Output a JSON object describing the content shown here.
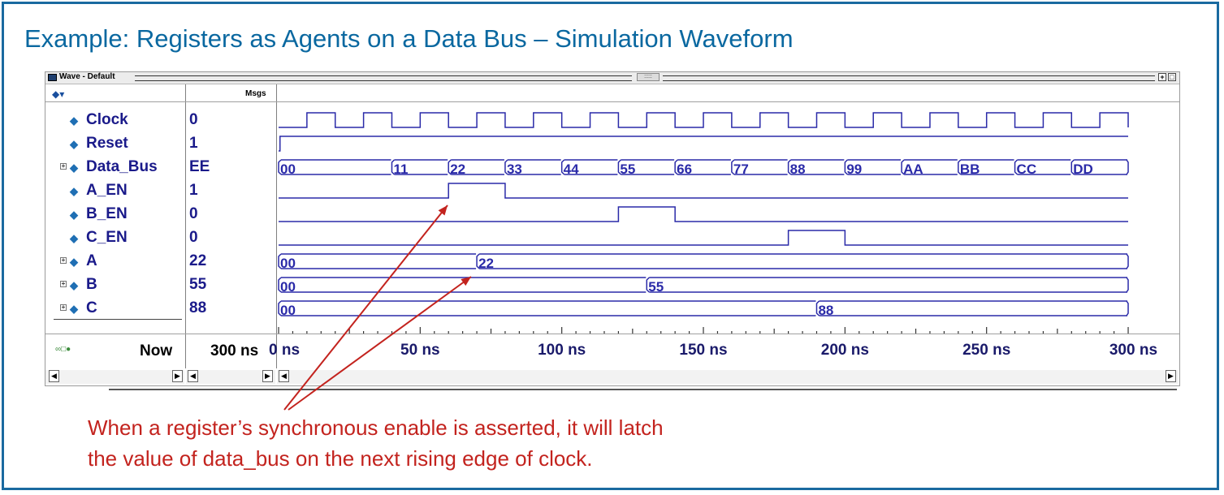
{
  "slide": {
    "title": "Example: Registers as Agents on a Data Bus – Simulation Waveform",
    "note_line1": "When a register’s synchronous enable is asserted, it will latch",
    "note_line2": "the value of data_bus on the next rising edge of clock."
  },
  "window": {
    "title": "Wave - Default",
    "msgs_header": "Msgs",
    "now_label": "Now",
    "now_value": "300 ns"
  },
  "signals": [
    {
      "name": "Clock",
      "value": "0",
      "expandable": false,
      "icon": "input-diamond-icon"
    },
    {
      "name": "Reset",
      "value": "1",
      "expandable": false,
      "icon": "input-diamond-icon"
    },
    {
      "name": "Data_Bus",
      "value": "EE",
      "expandable": true,
      "icon": "input-diamond-icon"
    },
    {
      "name": "A_EN",
      "value": "1",
      "expandable": false,
      "icon": "input-diamond-icon"
    },
    {
      "name": "B_EN",
      "value": "0",
      "expandable": false,
      "icon": "input-diamond-icon"
    },
    {
      "name": "C_EN",
      "value": "0",
      "expandable": false,
      "icon": "input-diamond-icon"
    },
    {
      "name": "A",
      "value": "22",
      "expandable": true,
      "icon": "output-diamond-icon"
    },
    {
      "name": "B",
      "value": "55",
      "expandable": true,
      "icon": "output-diamond-icon"
    },
    {
      "name": "C",
      "value": "88",
      "expandable": true,
      "icon": "output-diamond-icon"
    }
  ],
  "waveform": {
    "time_unit": "ns",
    "time_range": [
      0,
      300
    ],
    "axis_labels": [
      "0 ns",
      "50 ns",
      "100 ns",
      "150 ns",
      "200 ns",
      "250 ns",
      "300 ns"
    ],
    "clock_period_ns": 20,
    "data_bus_values": [
      {
        "t": 0,
        "v": "00"
      },
      {
        "t": 40,
        "v": "11"
      },
      {
        "t": 60,
        "v": "22"
      },
      {
        "t": 80,
        "v": "33"
      },
      {
        "t": 100,
        "v": "44"
      },
      {
        "t": 120,
        "v": "55"
      },
      {
        "t": 140,
        "v": "66"
      },
      {
        "t": 160,
        "v": "77"
      },
      {
        "t": 180,
        "v": "88"
      },
      {
        "t": 200,
        "v": "99"
      },
      {
        "t": 220,
        "v": "AA"
      },
      {
        "t": 240,
        "v": "BB"
      },
      {
        "t": 260,
        "v": "CC"
      },
      {
        "t": 280,
        "v": "DD"
      }
    ],
    "enables": {
      "A_EN": [
        [
          60,
          80
        ]
      ],
      "B_EN": [
        [
          120,
          140
        ]
      ],
      "C_EN": [
        [
          180,
          200
        ]
      ]
    },
    "registers": {
      "A": [
        {
          "t": 0,
          "v": "00"
        },
        {
          "t": 70,
          "v": "22"
        }
      ],
      "B": [
        {
          "t": 0,
          "v": "00"
        },
        {
          "t": 130,
          "v": "55"
        }
      ],
      "C": [
        {
          "t": 0,
          "v": "00"
        },
        {
          "t": 190,
          "v": "88"
        }
      ]
    }
  },
  "colors": {
    "wave": "#2a2aa8",
    "accent_title": "#0a68a0",
    "note": "#c3231e"
  }
}
